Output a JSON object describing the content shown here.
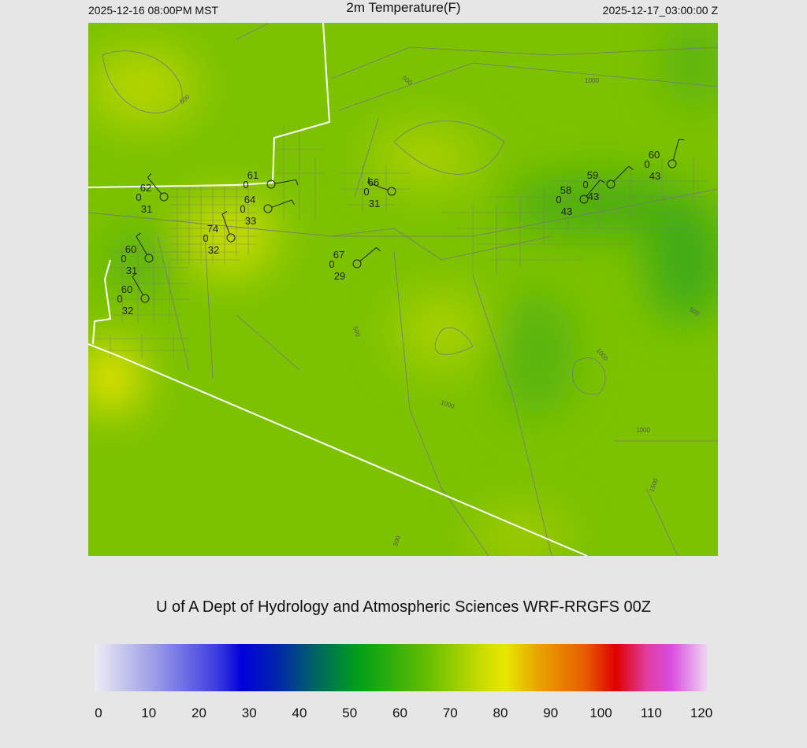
{
  "header": {
    "left": "2025-12-16 08:00PM MST",
    "title": "2m Temperature(F)",
    "right": "2025-12-17_03:00:00 Z"
  },
  "map": {
    "contour_labels": [
      "500",
      "500",
      "500",
      "500",
      "500",
      "1000",
      "1000",
      "1000",
      "1000",
      "1500"
    ],
    "stations": [
      {
        "temperature": 62,
        "pressure": 0,
        "dewpoint": 31
      },
      {
        "temperature": 61,
        "pressure": 0
      },
      {
        "temperature": 64,
        "pressure": 0,
        "dewpoint": 33
      },
      {
        "temperature": 74,
        "pressure": 0,
        "dewpoint": 32
      },
      {
        "temperature": 60,
        "pressure": 0,
        "dewpoint": 31
      },
      {
        "temperature": 60,
        "pressure": 0,
        "dewpoint": 32
      },
      {
        "temperature": 66,
        "pressure": 0,
        "dewpoint": 31
      },
      {
        "temperature": 67,
        "pressure": 0,
        "dewpoint": 29
      },
      {
        "temperature": 58,
        "pressure": 0,
        "dewpoint": 43
      },
      {
        "temperature": 59,
        "pressure": 0,
        "dewpoint": 43
      },
      {
        "temperature": 60,
        "pressure": 0,
        "dewpoint": 43
      }
    ]
  },
  "credit": "U of A Dept of Hydrology and Atmospheric Sciences WRF-RRGFS 00Z",
  "colorbar": {
    "ticks": [
      0,
      10,
      20,
      30,
      40,
      50,
      60,
      70,
      80,
      90,
      100,
      110,
      120
    ]
  }
}
